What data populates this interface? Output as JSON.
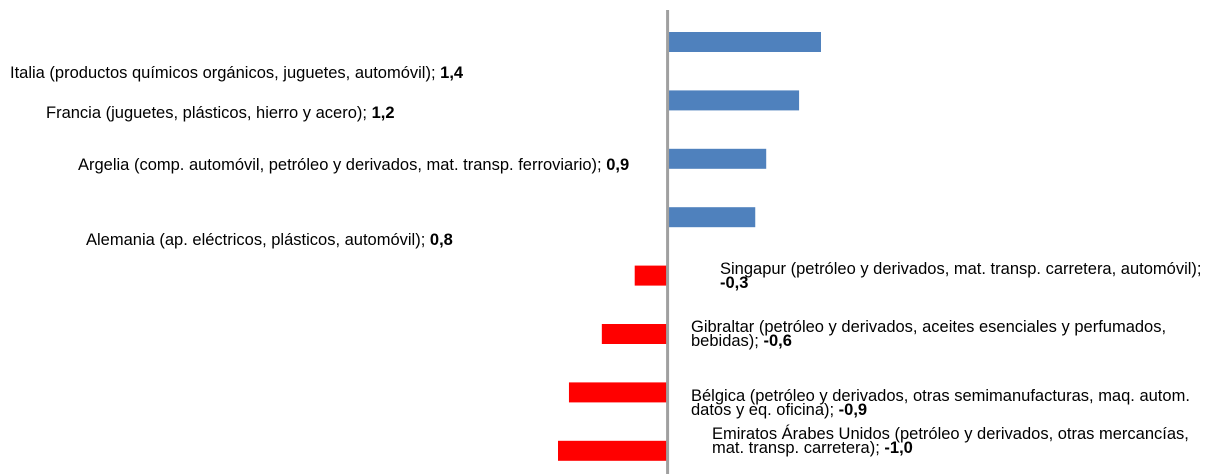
{
  "chart_data": {
    "type": "bar",
    "orientation": "horizontal",
    "categories": [
      "Italia (productos químicos orgánicos, juguetes, automóvil);",
      "Francia (juguetes, plásticos, hierro y acero);",
      "Argelia (comp. automóvil, petróleo y derivados, mat. transp. ferroviario);",
      "Alemania (ap. eléctricos, plásticos, automóvil);",
      "Singapur (petróleo y derivados, mat. transp. carretera, automóvil);",
      "Gibraltar (petróleo y derivados, aceites esenciales y perfumados, bebidas);",
      "Bélgica (petróleo y derivados, otras semimanufacturas, maq. autom. datos y eq. oficina);",
      "Emiratos Árabes Unidos (petróleo y derivados, otras mercancías, mat. transp. carretera);"
    ],
    "values": [
      1.4,
      1.2,
      0.9,
      0.8,
      -0.3,
      -0.6,
      -0.9,
      -1.0
    ],
    "value_labels": [
      "1,4",
      "1,2",
      "0,9",
      "0,8",
      "-0,3",
      "-0,6",
      "-0,9",
      "-1,0"
    ],
    "colors": [
      "#4f81bd",
      "#4f81bd",
      "#4f81bd",
      "#4f81bd",
      "#ff0000",
      "#ff0000",
      "#ff0000",
      "#ff0000"
    ],
    "xlim": [
      -1.0,
      1.4
    ]
  }
}
